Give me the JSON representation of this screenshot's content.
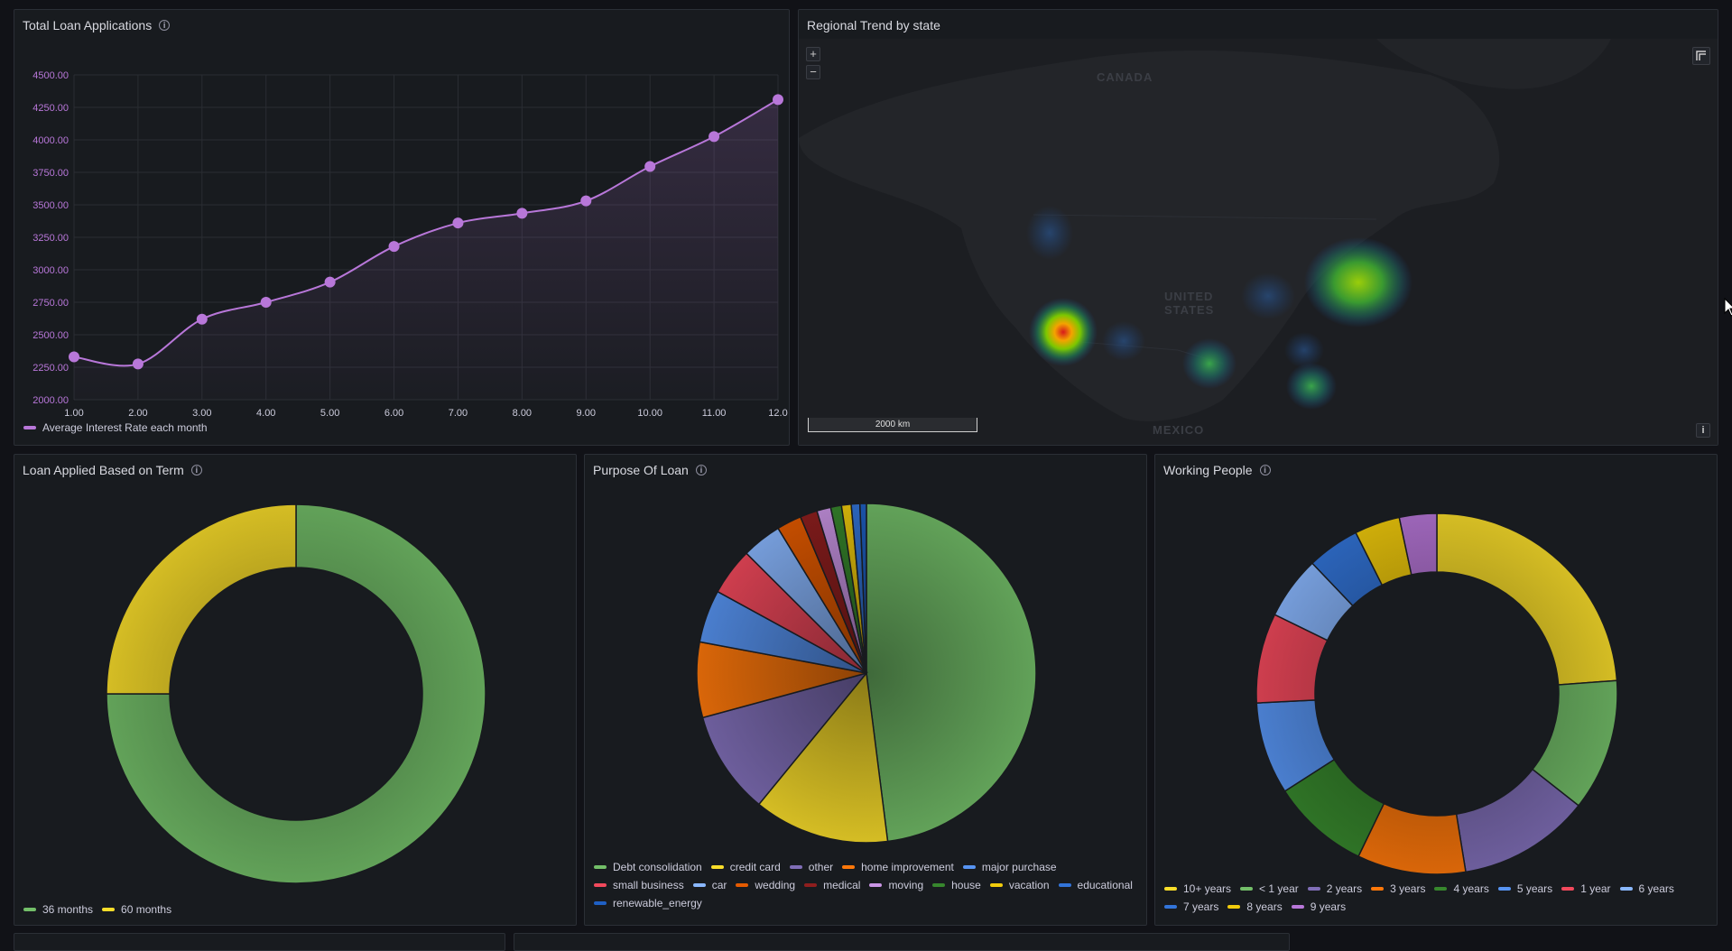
{
  "colors": {
    "series": "#b877d9",
    "green": "#56a64b",
    "yellow": "#e0b400",
    "purple": "#806eb7",
    "orange": "#e55b00",
    "blue": "#3274d9",
    "red": "#f2495c"
  },
  "line_panel": {
    "title": "Total Loan Applications",
    "info_icon": "info-icon",
    "legend_label": "Average Interest Rate each month"
  },
  "map_panel": {
    "title": "Regional Trend by state",
    "zoom_in": "+",
    "zoom_out": "−",
    "labels": {
      "canada": "CANADA",
      "us1": "UNITED",
      "us2": "STATES",
      "mexico": "MEXICO"
    },
    "scale": "2000 km",
    "info_button": "i",
    "hotspots": [
      {
        "name": "california",
        "intensity": "high"
      },
      {
        "name": "northeast",
        "intensity": "medium"
      },
      {
        "name": "texas",
        "intensity": "low"
      },
      {
        "name": "florida",
        "intensity": "low"
      },
      {
        "name": "illinois",
        "intensity": "low"
      },
      {
        "name": "washington",
        "intensity": "low"
      }
    ]
  },
  "term_panel": {
    "title": "Loan Applied Based on Term",
    "legend": [
      {
        "label": "36 months",
        "color": "#73bf69"
      },
      {
        "label": "60 months",
        "color": "#fade2a"
      }
    ]
  },
  "purpose_panel": {
    "title": "Purpose Of Loan",
    "legend": [
      {
        "label": "Debt consolidation",
        "color": "#73bf69"
      },
      {
        "label": "credit card",
        "color": "#fade2a"
      },
      {
        "label": "other",
        "color": "#806eb7"
      },
      {
        "label": "home improvement",
        "color": "#ff780a"
      },
      {
        "label": "major purchase",
        "color": "#5794f2"
      },
      {
        "label": "small business",
        "color": "#f2495c"
      },
      {
        "label": "car",
        "color": "#8ab8ff"
      },
      {
        "label": "wedding",
        "color": "#e55b00"
      },
      {
        "label": "medical",
        "color": "#8f1e1e"
      },
      {
        "label": "moving",
        "color": "#ca95e5"
      },
      {
        "label": "house",
        "color": "#37872d"
      },
      {
        "label": "vacation",
        "color": "#f2cc0c"
      },
      {
        "label": "educational",
        "color": "#3274d9"
      },
      {
        "label": "renewable_energy",
        "color": "#1f60c4"
      }
    ]
  },
  "working_panel": {
    "title": "Working People",
    "legend": [
      {
        "label": "10+ years",
        "color": "#fade2a"
      },
      {
        "label": "< 1 year",
        "color": "#73bf69"
      },
      {
        "label": "2 years",
        "color": "#806eb7"
      },
      {
        "label": "3 years",
        "color": "#ff780a"
      },
      {
        "label": "4 years",
        "color": "#37872d"
      },
      {
        "label": "5 years",
        "color": "#5794f2"
      },
      {
        "label": "1 year",
        "color": "#f2495c"
      },
      {
        "label": "6 years",
        "color": "#8ab8ff"
      },
      {
        "label": "7 years",
        "color": "#3274d9"
      },
      {
        "label": "8 years",
        "color": "#f2cc0c"
      },
      {
        "label": "9 years",
        "color": "#b877d9"
      }
    ]
  },
  "chart_data": [
    {
      "type": "line",
      "title": "Total Loan Applications",
      "series": [
        {
          "name": "Average Interest Rate each month",
          "x": [
            1,
            2,
            3,
            4,
            5,
            6,
            7,
            8,
            9,
            10,
            11,
            12
          ],
          "values": [
            2330,
            2275,
            2620,
            2750,
            2905,
            3180,
            3360,
            3435,
            3530,
            3795,
            4025,
            4310
          ]
        }
      ],
      "x_ticks": [
        "1.00",
        "2.00",
        "3.00",
        "4.00",
        "5.00",
        "6.00",
        "7.00",
        "8.00",
        "9.00",
        "10.00",
        "11.00",
        "12.0"
      ],
      "y_ticks": [
        "2000.00",
        "2250.00",
        "2500.00",
        "2750.00",
        "3000.00",
        "3250.00",
        "3500.00",
        "3750.00",
        "4000.00",
        "4250.00",
        "4500.00"
      ],
      "xlim": [
        1,
        12
      ],
      "ylim": [
        2000,
        4500
      ],
      "grid": true,
      "legend": "bottom-left"
    },
    {
      "type": "pie",
      "title": "Loan Applied Based on Term",
      "donut": true,
      "categories": [
        "36 months",
        "60 months"
      ],
      "values": [
        75,
        25
      ]
    },
    {
      "type": "pie",
      "title": "Purpose Of Loan",
      "donut": false,
      "categories": [
        "Debt consolidation",
        "credit card",
        "other",
        "home improvement",
        "major purchase",
        "small business",
        "car",
        "wedding",
        "medical",
        "moving",
        "house",
        "vacation",
        "educational",
        "renewable_energy"
      ],
      "values": [
        46.8,
        12.6,
        9.6,
        7.0,
        4.9,
        4.4,
        3.7,
        2.3,
        1.6,
        1.3,
        1.0,
        0.9,
        0.8,
        0.6
      ]
    },
    {
      "type": "pie",
      "title": "Working People",
      "donut": true,
      "categories": [
        "10+ years",
        "< 1 year",
        "2 years",
        "3 years",
        "4 years",
        "5 years",
        "1 year",
        "6 years",
        "7 years",
        "8 years",
        "9 years"
      ],
      "values": [
        22.8,
        11.3,
        11.3,
        9.3,
        8.4,
        7.9,
        7.7,
        5.4,
        4.5,
        3.9,
        3.2
      ]
    }
  ]
}
